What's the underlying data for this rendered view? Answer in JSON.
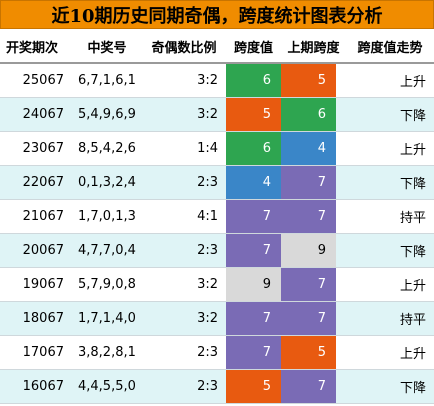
{
  "title": "近10期历史同期奇偶，跨度统计图表分析",
  "headers": {
    "period": "开奖期次",
    "nums": "中奖号",
    "ratio": "奇偶数比例",
    "span": "跨度值",
    "prev": "上期跨度",
    "trend": "跨度值走势"
  },
  "colors": {
    "title_bg": "#f08c00",
    "green": "#2ea550",
    "orange": "#e85a10",
    "blue": "#3a86c8",
    "purple": "#7a6bb5",
    "gray": "#d9d9d9",
    "alt_row": "#dff4f6"
  },
  "rows": [
    {
      "period": "25067",
      "nums": "6,7,1,6,1",
      "ratio": "3:2",
      "span": "6",
      "span_color": "#2ea550",
      "prev": "5",
      "prev_color": "#e85a10",
      "trend": "上升"
    },
    {
      "period": "24067",
      "nums": "5,4,9,6,9",
      "ratio": "3:2",
      "span": "5",
      "span_color": "#e85a10",
      "prev": "6",
      "prev_color": "#2ea550",
      "trend": "下降"
    },
    {
      "period": "23067",
      "nums": "8,5,4,2,6",
      "ratio": "1:4",
      "span": "6",
      "span_color": "#2ea550",
      "prev": "4",
      "prev_color": "#3a86c8",
      "trend": "上升"
    },
    {
      "period": "22067",
      "nums": "0,1,3,2,4",
      "ratio": "2:3",
      "span": "4",
      "span_color": "#3a86c8",
      "prev": "7",
      "prev_color": "#7a6bb5",
      "trend": "下降"
    },
    {
      "period": "21067",
      "nums": "1,7,0,1,3",
      "ratio": "4:1",
      "span": "7",
      "span_color": "#7a6bb5",
      "prev": "7",
      "prev_color": "#7a6bb5",
      "trend": "持平"
    },
    {
      "period": "20067",
      "nums": "4,7,7,0,4",
      "ratio": "2:3",
      "span": "7",
      "span_color": "#7a6bb5",
      "prev": "9",
      "prev_color": "#d9d9d9",
      "trend": "下降"
    },
    {
      "period": "19067",
      "nums": "5,7,9,0,8",
      "ratio": "3:2",
      "span": "9",
      "span_color": "#d9d9d9",
      "prev": "7",
      "prev_color": "#7a6bb5",
      "trend": "上升"
    },
    {
      "period": "18067",
      "nums": "1,7,1,4,0",
      "ratio": "3:2",
      "span": "7",
      "span_color": "#7a6bb5",
      "prev": "7",
      "prev_color": "#7a6bb5",
      "trend": "持平"
    },
    {
      "period": "17067",
      "nums": "3,8,2,8,1",
      "ratio": "2:3",
      "span": "7",
      "span_color": "#7a6bb5",
      "prev": "5",
      "prev_color": "#e85a10",
      "trend": "上升"
    },
    {
      "period": "16067",
      "nums": "4,4,5,5,0",
      "ratio": "2:3",
      "span": "5",
      "span_color": "#e85a10",
      "prev": "7",
      "prev_color": "#7a6bb5",
      "trend": "下降"
    }
  ]
}
